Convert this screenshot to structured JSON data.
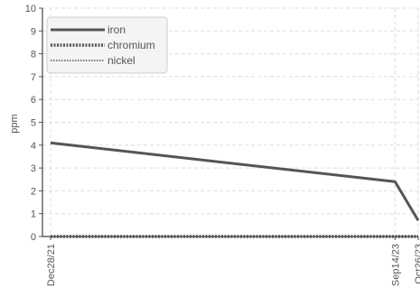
{
  "chart_data": {
    "type": "line",
    "xlabel": "",
    "ylabel": "ppm",
    "x": [
      "Dec28/21",
      "Sep14/23",
      "Oct26/23"
    ],
    "x_tick_labels": [
      "Dec28/21",
      "Sep14/23",
      "Oct26/23"
    ],
    "ylim": [
      0,
      10
    ],
    "y_ticks": [
      0,
      1,
      2,
      3,
      4,
      5,
      6,
      7,
      8,
      9,
      10
    ],
    "grid": true,
    "legend_position": "top-left",
    "series": [
      {
        "name": "iron",
        "values": [
          4.1,
          2.4,
          0.7
        ],
        "color": "#555555",
        "style": "solid"
      },
      {
        "name": "chromium",
        "values": [
          0,
          0,
          0
        ],
        "color": "#555555",
        "style": "dotted"
      },
      {
        "name": "nickel",
        "values": [
          0,
          0,
          0
        ],
        "color": "#777777",
        "style": "dotted-thin"
      }
    ]
  }
}
